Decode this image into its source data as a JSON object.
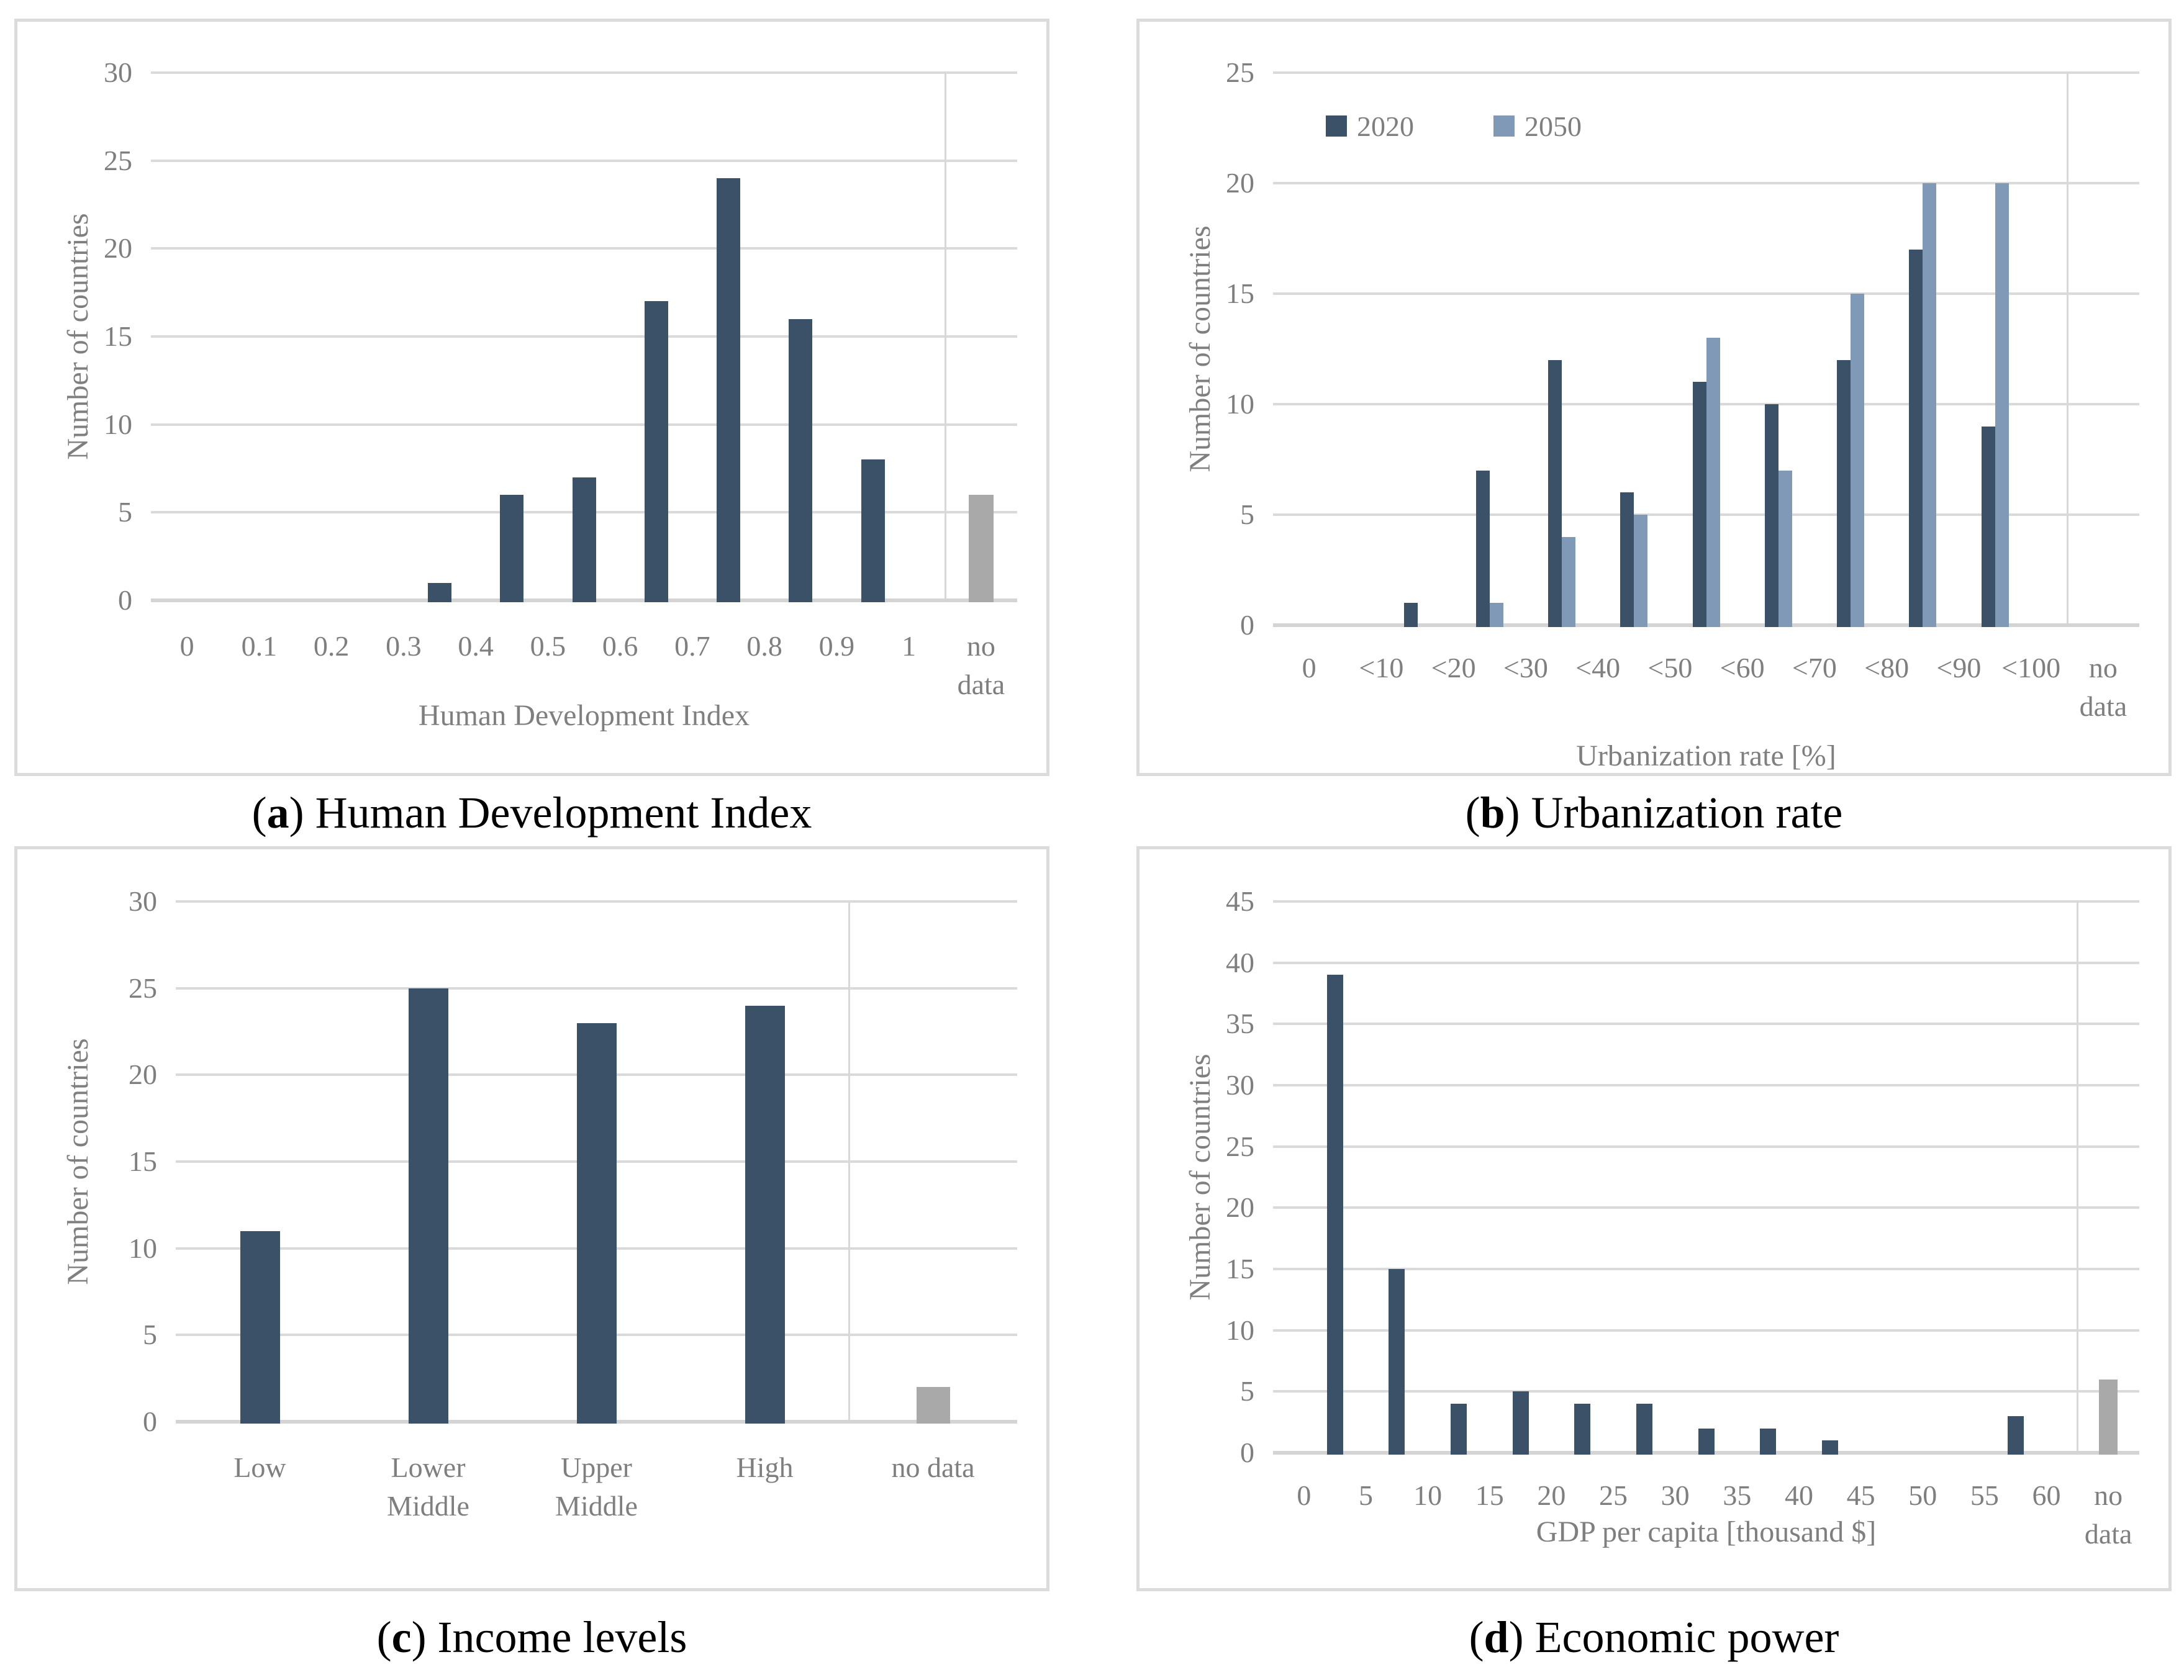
{
  "colors": {
    "bar_2020_dark": "#3B5168",
    "bar_2050_light": "#8099B6",
    "bar_no_data_gray": "#A9A9A9",
    "gridline": "#DADADA",
    "axis_line": "#D4D4D4",
    "separator_line": "#D8D8D8",
    "axis_text": "#7F7F7F",
    "panel_border": "#DBDBDB",
    "caption_text": "#000000"
  },
  "captions": [
    {
      "letter": "a",
      "text": "Human Development Index"
    },
    {
      "letter": "b",
      "text": "Urbanization rate"
    },
    {
      "letter": "c",
      "text": "Income levels"
    },
    {
      "letter": "d",
      "text": "Economic power"
    }
  ],
  "chart_data": [
    {
      "id": "a",
      "type": "bar",
      "title": "(a) Human Development Index",
      "ylabel": "Number of countries",
      "xlabel": "Human Development Index",
      "ylim": [
        0,
        30
      ],
      "ytick_step": 5,
      "grid": true,
      "legend": null,
      "bar_placement": "between-categories",
      "categories": [
        "0",
        "0.1",
        "0.2",
        "0.3",
        "0.4",
        "0.5",
        "0.6",
        "0.7",
        "0.8",
        "0.9",
        "1",
        "no\ndata"
      ],
      "series": [
        {
          "name": "countries",
          "color_key": "bar_2020_dark",
          "values": [
            0,
            0,
            0,
            1,
            6,
            7,
            17,
            24,
            16,
            8,
            0
          ]
        }
      ],
      "no_data_bar": {
        "category_index": 11,
        "value": 6,
        "color_key": "bar_no_data_gray"
      },
      "separator_before_category": 11
    },
    {
      "id": "b",
      "type": "bar",
      "title": "(b) Urbanization rate",
      "ylabel": "Number of countries",
      "xlabel": "Urbanization rate [%]",
      "ylim": [
        0,
        25
      ],
      "ytick_step": 5,
      "grid": true,
      "legend": [
        "2020",
        "2050"
      ],
      "bar_placement": "between-categories",
      "categories": [
        "0",
        "<10",
        "<20",
        "<30",
        "<40",
        "<50",
        "<60",
        "<70",
        "<80",
        "<90",
        "<100",
        "no\ndata"
      ],
      "series": [
        {
          "name": "2020",
          "color_key": "bar_2020_dark",
          "values": [
            0,
            1,
            7,
            12,
            6,
            11,
            10,
            12,
            17,
            9,
            0
          ]
        },
        {
          "name": "2050",
          "color_key": "bar_2050_light",
          "values": [
            0,
            0,
            1,
            4,
            5,
            13,
            7,
            15,
            20,
            20,
            0
          ]
        }
      ],
      "no_data_bar": null,
      "separator_before_category": 11
    },
    {
      "id": "c",
      "type": "bar",
      "title": "(c) Income levels",
      "ylabel": "Number of countries",
      "xlabel": null,
      "ylim": [
        0,
        30
      ],
      "ytick_step": 5,
      "grid": true,
      "legend": null,
      "bar_placement": "on-categories",
      "categories": [
        "Low",
        "Lower\nMiddle",
        "Upper\nMiddle",
        "High",
        "no data"
      ],
      "series": [
        {
          "name": "countries",
          "color_key": "bar_2020_dark",
          "values": [
            11,
            25,
            23,
            24,
            0
          ]
        }
      ],
      "no_data_bar": {
        "category_index": 4,
        "value": 2,
        "color_key": "bar_no_data_gray"
      },
      "separator_before_category": 4
    },
    {
      "id": "d",
      "type": "bar",
      "title": "(d) Economic power",
      "ylabel": "Number of countries",
      "xlabel": "GDP per capita [thousand $]",
      "ylim": [
        0,
        45
      ],
      "ytick_step": 5,
      "grid": true,
      "legend": null,
      "bar_placement": "between-categories",
      "categories": [
        "0",
        "5",
        "10",
        "15",
        "20",
        "25",
        "30",
        "35",
        "40",
        "45",
        "50",
        "55",
        "60",
        "no\ndata"
      ],
      "series": [
        {
          "name": "countries",
          "color_key": "bar_2020_dark",
          "values": [
            39,
            15,
            4,
            5,
            4,
            4,
            2,
            2,
            1,
            0,
            0,
            3,
            0
          ]
        }
      ],
      "no_data_bar": {
        "category_index": 13,
        "value": 6,
        "color_key": "bar_no_data_gray"
      },
      "separator_before_category": 13
    }
  ]
}
